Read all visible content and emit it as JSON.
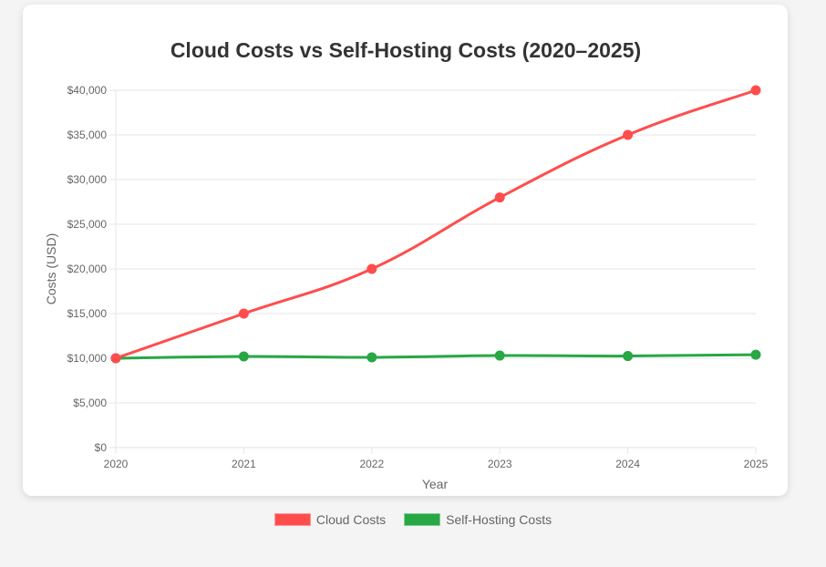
{
  "chart_data": {
    "type": "line",
    "title": "Cloud Costs vs Self-Hosting Costs (2020–2025)",
    "xlabel": "Year",
    "ylabel": "Costs (USD)",
    "categories": [
      "2020",
      "2021",
      "2022",
      "2023",
      "2024",
      "2025"
    ],
    "series": [
      {
        "name": "Cloud Costs",
        "color": "#ff4d4d",
        "values": [
          10000,
          15000,
          20000,
          28000,
          35000,
          40000
        ]
      },
      {
        "name": "Self-Hosting Costs",
        "color": "#28a745",
        "values": [
          10000,
          10200,
          10100,
          10300,
          10250,
          10400
        ]
      }
    ],
    "ylim": [
      0,
      40000
    ],
    "yticks": [
      "$0",
      "$5,000",
      "$10,000",
      "$15,000",
      "$20,000",
      "$25,000",
      "$30,000",
      "$35,000",
      "$40,000"
    ],
    "grid": true,
    "legend_position": "bottom"
  }
}
